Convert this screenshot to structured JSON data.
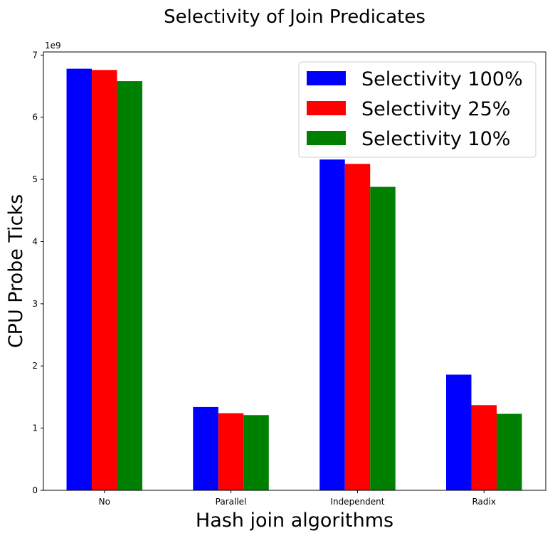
{
  "chart_data": {
    "type": "bar",
    "title": "Selectivity of Join Predicates",
    "xlabel": "Hash join algorithms",
    "ylabel": "CPU Probe Ticks",
    "y_scale_label": "1e9",
    "y_multiplier": 1000000000.0,
    "ylim": [
      0,
      7.05
    ],
    "yticks": [
      0,
      1,
      2,
      3,
      4,
      5,
      6,
      7
    ],
    "grid": false,
    "legend_position": "top-right",
    "categories": [
      "No",
      "Parallel",
      "Independent",
      "Radix"
    ],
    "series": [
      {
        "name": "Selectivity 100%",
        "color": "#0000ff",
        "values": [
          6.78,
          1.34,
          5.32,
          1.86
        ]
      },
      {
        "name": "Selectivity 25%",
        "color": "#ff0000",
        "values": [
          6.76,
          1.24,
          5.25,
          1.37
        ]
      },
      {
        "name": "Selectivity 10%",
        "color": "#008000",
        "values": [
          6.58,
          1.21,
          4.88,
          1.23
        ]
      }
    ]
  }
}
